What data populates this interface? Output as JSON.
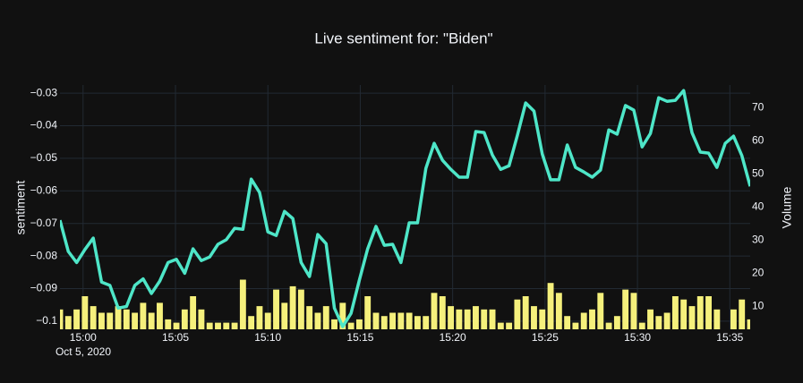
{
  "chart_data": {
    "type": "line+bar",
    "title": "Live sentiment for: \"Biden\"",
    "y_label": "sentiment",
    "y2_label": "Volume",
    "x_date_label": "Oct 5, 2020",
    "x": [
      "14:58:45",
      "14:59:12",
      "14:59:39",
      "15:00:06",
      "15:00:33",
      "15:01:00",
      "15:01:27",
      "15:01:54",
      "15:02:21",
      "15:02:48",
      "15:03:15",
      "15:03:42",
      "15:04:09",
      "15:04:36",
      "15:05:03",
      "15:05:30",
      "15:05:57",
      "15:06:24",
      "15:06:51",
      "15:07:18",
      "15:07:45",
      "15:08:12",
      "15:08:39",
      "15:09:06",
      "15:09:33",
      "15:10:00",
      "15:10:27",
      "15:10:54",
      "15:11:21",
      "15:11:48",
      "15:12:15",
      "15:12:42",
      "15:13:09",
      "15:13:36",
      "15:14:03",
      "15:14:30",
      "15:14:57",
      "15:15:24",
      "15:15:51",
      "15:16:18",
      "15:16:45",
      "15:17:12",
      "15:17:39",
      "15:18:06",
      "15:18:33",
      "15:19:00",
      "15:19:27",
      "15:19:54",
      "15:20:21",
      "15:20:48",
      "15:21:15",
      "15:21:42",
      "15:22:09",
      "15:22:36",
      "15:23:03",
      "15:23:30",
      "15:23:57",
      "15:24:24",
      "15:24:51",
      "15:25:18",
      "15:25:45",
      "15:26:12",
      "15:26:39",
      "15:27:06",
      "15:27:33",
      "15:28:00",
      "15:28:27",
      "15:28:54",
      "15:29:21",
      "15:29:48",
      "15:30:15",
      "15:30:42",
      "15:31:09",
      "15:31:36",
      "15:32:03",
      "15:32:30",
      "15:32:57",
      "15:33:24",
      "15:33:51",
      "15:34:18",
      "15:34:45",
      "15:35:12",
      "15:35:39",
      "15:36:06"
    ],
    "series": [
      {
        "name": "sentiment",
        "kind": "line",
        "color": "#4ee6c8",
        "values": [
          -0.069,
          -0.0786,
          -0.082,
          -0.078,
          -0.0745,
          -0.088,
          -0.089,
          -0.096,
          -0.0955,
          -0.089,
          -0.087,
          -0.0915,
          -0.0877,
          -0.082,
          -0.081,
          -0.0853,
          -0.0778,
          -0.0814,
          -0.0803,
          -0.0764,
          -0.075,
          -0.0715,
          -0.0718,
          -0.0564,
          -0.0605,
          -0.0726,
          -0.0737,
          -0.0663,
          -0.0685,
          -0.082,
          -0.0863,
          -0.0734,
          -0.0762,
          -0.096,
          -0.1017,
          -0.0976,
          -0.0874,
          -0.0778,
          -0.0709,
          -0.0767,
          -0.0764,
          -0.082,
          -0.0698,
          -0.0698,
          -0.0531,
          -0.0454,
          -0.0506,
          -0.0534,
          -0.0558,
          -0.0558,
          -0.0418,
          -0.0421,
          -0.049,
          -0.0534,
          -0.0523,
          -0.043,
          -0.033,
          -0.0355,
          -0.0487,
          -0.0566,
          -0.0566,
          -0.0459,
          -0.0528,
          -0.0542,
          -0.0558,
          -0.0536,
          -0.0413,
          -0.0426,
          -0.0338,
          -0.0352,
          -0.0465,
          -0.0424,
          -0.0314,
          -0.0325,
          -0.0322,
          -0.0292,
          -0.0421,
          -0.0481,
          -0.0484,
          -0.0528,
          -0.0454,
          -0.0432,
          -0.0492,
          -0.0586
        ]
      },
      {
        "name": "Volume",
        "kind": "bar",
        "axis": "y2",
        "color": "#f5f07c",
        "values": [
          9,
          7,
          9,
          13,
          10,
          8,
          8,
          10,
          9,
          8,
          11,
          8,
          11,
          6,
          5,
          9,
          13,
          9,
          5,
          5,
          5,
          5,
          18,
          7,
          10,
          8,
          15,
          11,
          16,
          15,
          10,
          8,
          10,
          6,
          11,
          5,
          6,
          13,
          8,
          7,
          8,
          8,
          8,
          7,
          7,
          14,
          13,
          10,
          9,
          9,
          10,
          9,
          9,
          5,
          5,
          12,
          13,
          10,
          9,
          17,
          14,
          7,
          5,
          8,
          9,
          14,
          5,
          7,
          15,
          14,
          5,
          9,
          7,
          8,
          13,
          12,
          10,
          13,
          13,
          9,
          null,
          9,
          12,
          6
        ]
      }
    ],
    "xlim": [
      "14:58:45",
      "15:36:06"
    ],
    "xticks": [
      {
        "value": "15:00:00",
        "label": "15:00"
      },
      {
        "value": "15:05:00",
        "label": "15:05"
      },
      {
        "value": "15:10:00",
        "label": "15:10"
      },
      {
        "value": "15:15:00",
        "label": "15:15"
      },
      {
        "value": "15:20:00",
        "label": "15:20"
      },
      {
        "value": "15:25:00",
        "label": "15:25"
      },
      {
        "value": "15:30:00",
        "label": "15:30"
      },
      {
        "value": "15:35:00",
        "label": "15:35"
      }
    ],
    "ylim": [
      -0.1025,
      -0.0275
    ],
    "yticks": [
      {
        "value": -0.1,
        "label": "−0.1"
      },
      {
        "value": -0.09,
        "label": "−0.09"
      },
      {
        "value": -0.08,
        "label": "−0.08"
      },
      {
        "value": -0.07,
        "label": "−0.07"
      },
      {
        "value": -0.06,
        "label": "−0.06"
      },
      {
        "value": -0.05,
        "label": "−0.05"
      },
      {
        "value": -0.04,
        "label": "−0.04"
      },
      {
        "value": -0.03,
        "label": "−0.03"
      }
    ],
    "y2lim": [
      3,
      76.8
    ],
    "y2ticks": [
      10,
      20,
      30,
      40,
      50,
      60,
      70
    ],
    "grid": true
  }
}
